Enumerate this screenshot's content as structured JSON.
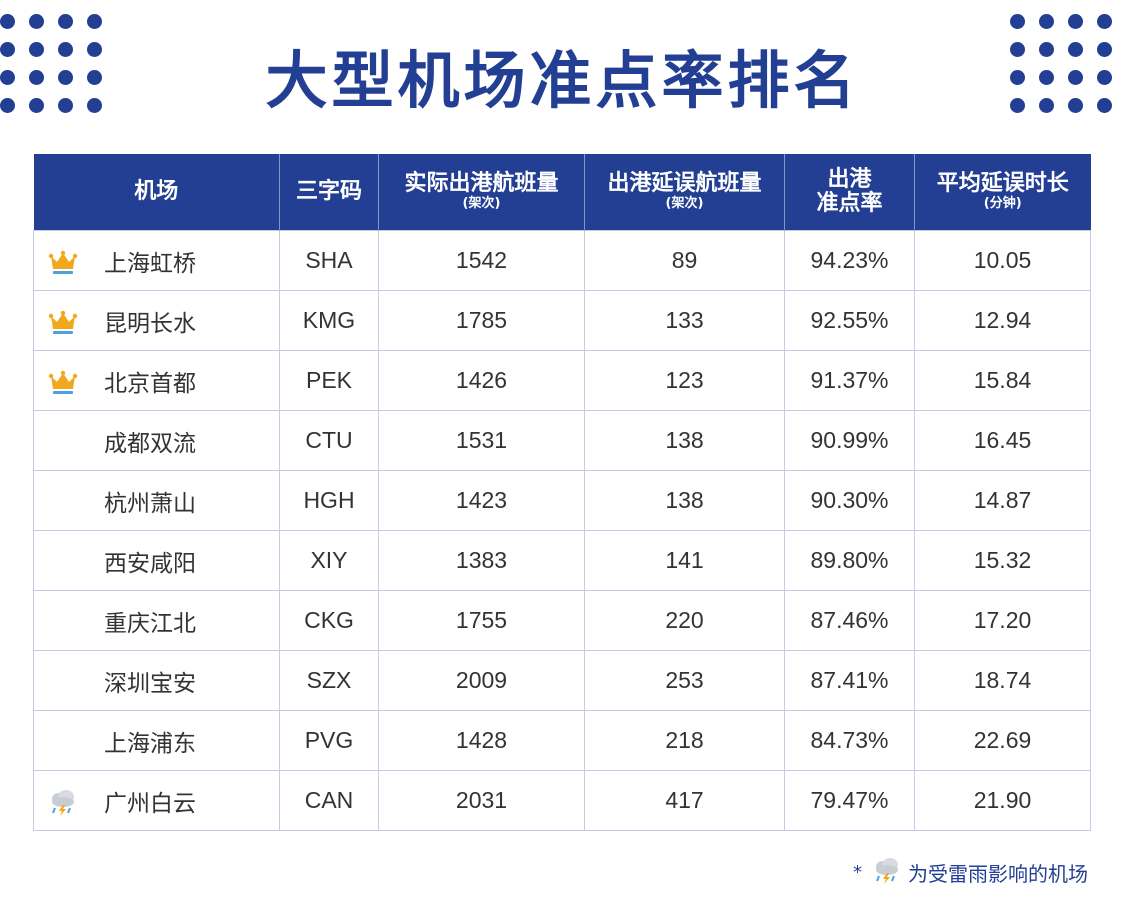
{
  "title": "大型机场准点率排名",
  "columns": [
    {
      "label": "机场",
      "sub": ""
    },
    {
      "label": "三字码",
      "sub": ""
    },
    {
      "label": "实际出港航班量",
      "sub": "(架次)"
    },
    {
      "label": "出港延误航班量",
      "sub": "(架次)"
    },
    {
      "label": "出港\n准点率",
      "sub": ""
    },
    {
      "label": "平均延误时长",
      "sub": "(分钟)"
    }
  ],
  "rows": [
    {
      "icon": "crown-icon",
      "name": "上海虹桥",
      "code": "SHA",
      "departures": "1542",
      "delayed": "89",
      "ontime": "94.23%",
      "avg_delay": "10.05"
    },
    {
      "icon": "crown-icon",
      "name": "昆明长水",
      "code": "KMG",
      "departures": "1785",
      "delayed": "133",
      "ontime": "92.55%",
      "avg_delay": "12.94"
    },
    {
      "icon": "crown-icon",
      "name": "北京首都",
      "code": "PEK",
      "departures": "1426",
      "delayed": "123",
      "ontime": "91.37%",
      "avg_delay": "15.84"
    },
    {
      "icon": "",
      "name": "成都双流",
      "code": "CTU",
      "departures": "1531",
      "delayed": "138",
      "ontime": "90.99%",
      "avg_delay": "16.45"
    },
    {
      "icon": "",
      "name": "杭州萧山",
      "code": "HGH",
      "departures": "1423",
      "delayed": "138",
      "ontime": "90.30%",
      "avg_delay": "14.87"
    },
    {
      "icon": "",
      "name": "西安咸阳",
      "code": "XIY",
      "departures": "1383",
      "delayed": "141",
      "ontime": "89.80%",
      "avg_delay": "15.32"
    },
    {
      "icon": "",
      "name": "重庆江北",
      "code": "CKG",
      "departures": "1755",
      "delayed": "220",
      "ontime": "87.46%",
      "avg_delay": "17.20"
    },
    {
      "icon": "",
      "name": "深圳宝安",
      "code": "SZX",
      "departures": "2009",
      "delayed": "253",
      "ontime": "87.41%",
      "avg_delay": "18.74"
    },
    {
      "icon": "",
      "name": "上海浦东",
      "code": "PVG",
      "departures": "1428",
      "delayed": "218",
      "ontime": "84.73%",
      "avg_delay": "22.69"
    },
    {
      "icon": "thunderstorm-icon",
      "name": "广州白云",
      "code": "CAN",
      "departures": "2031",
      "delayed": "417",
      "ontime": "79.47%",
      "avg_delay": "21.90"
    }
  ],
  "footnote": {
    "marker": "*",
    "icon": "thunderstorm-icon",
    "text": "为受雷雨影响的机场"
  },
  "colors": {
    "primary": "#233f94",
    "crown": "#f2a81d",
    "border": "#c5cbe3"
  }
}
